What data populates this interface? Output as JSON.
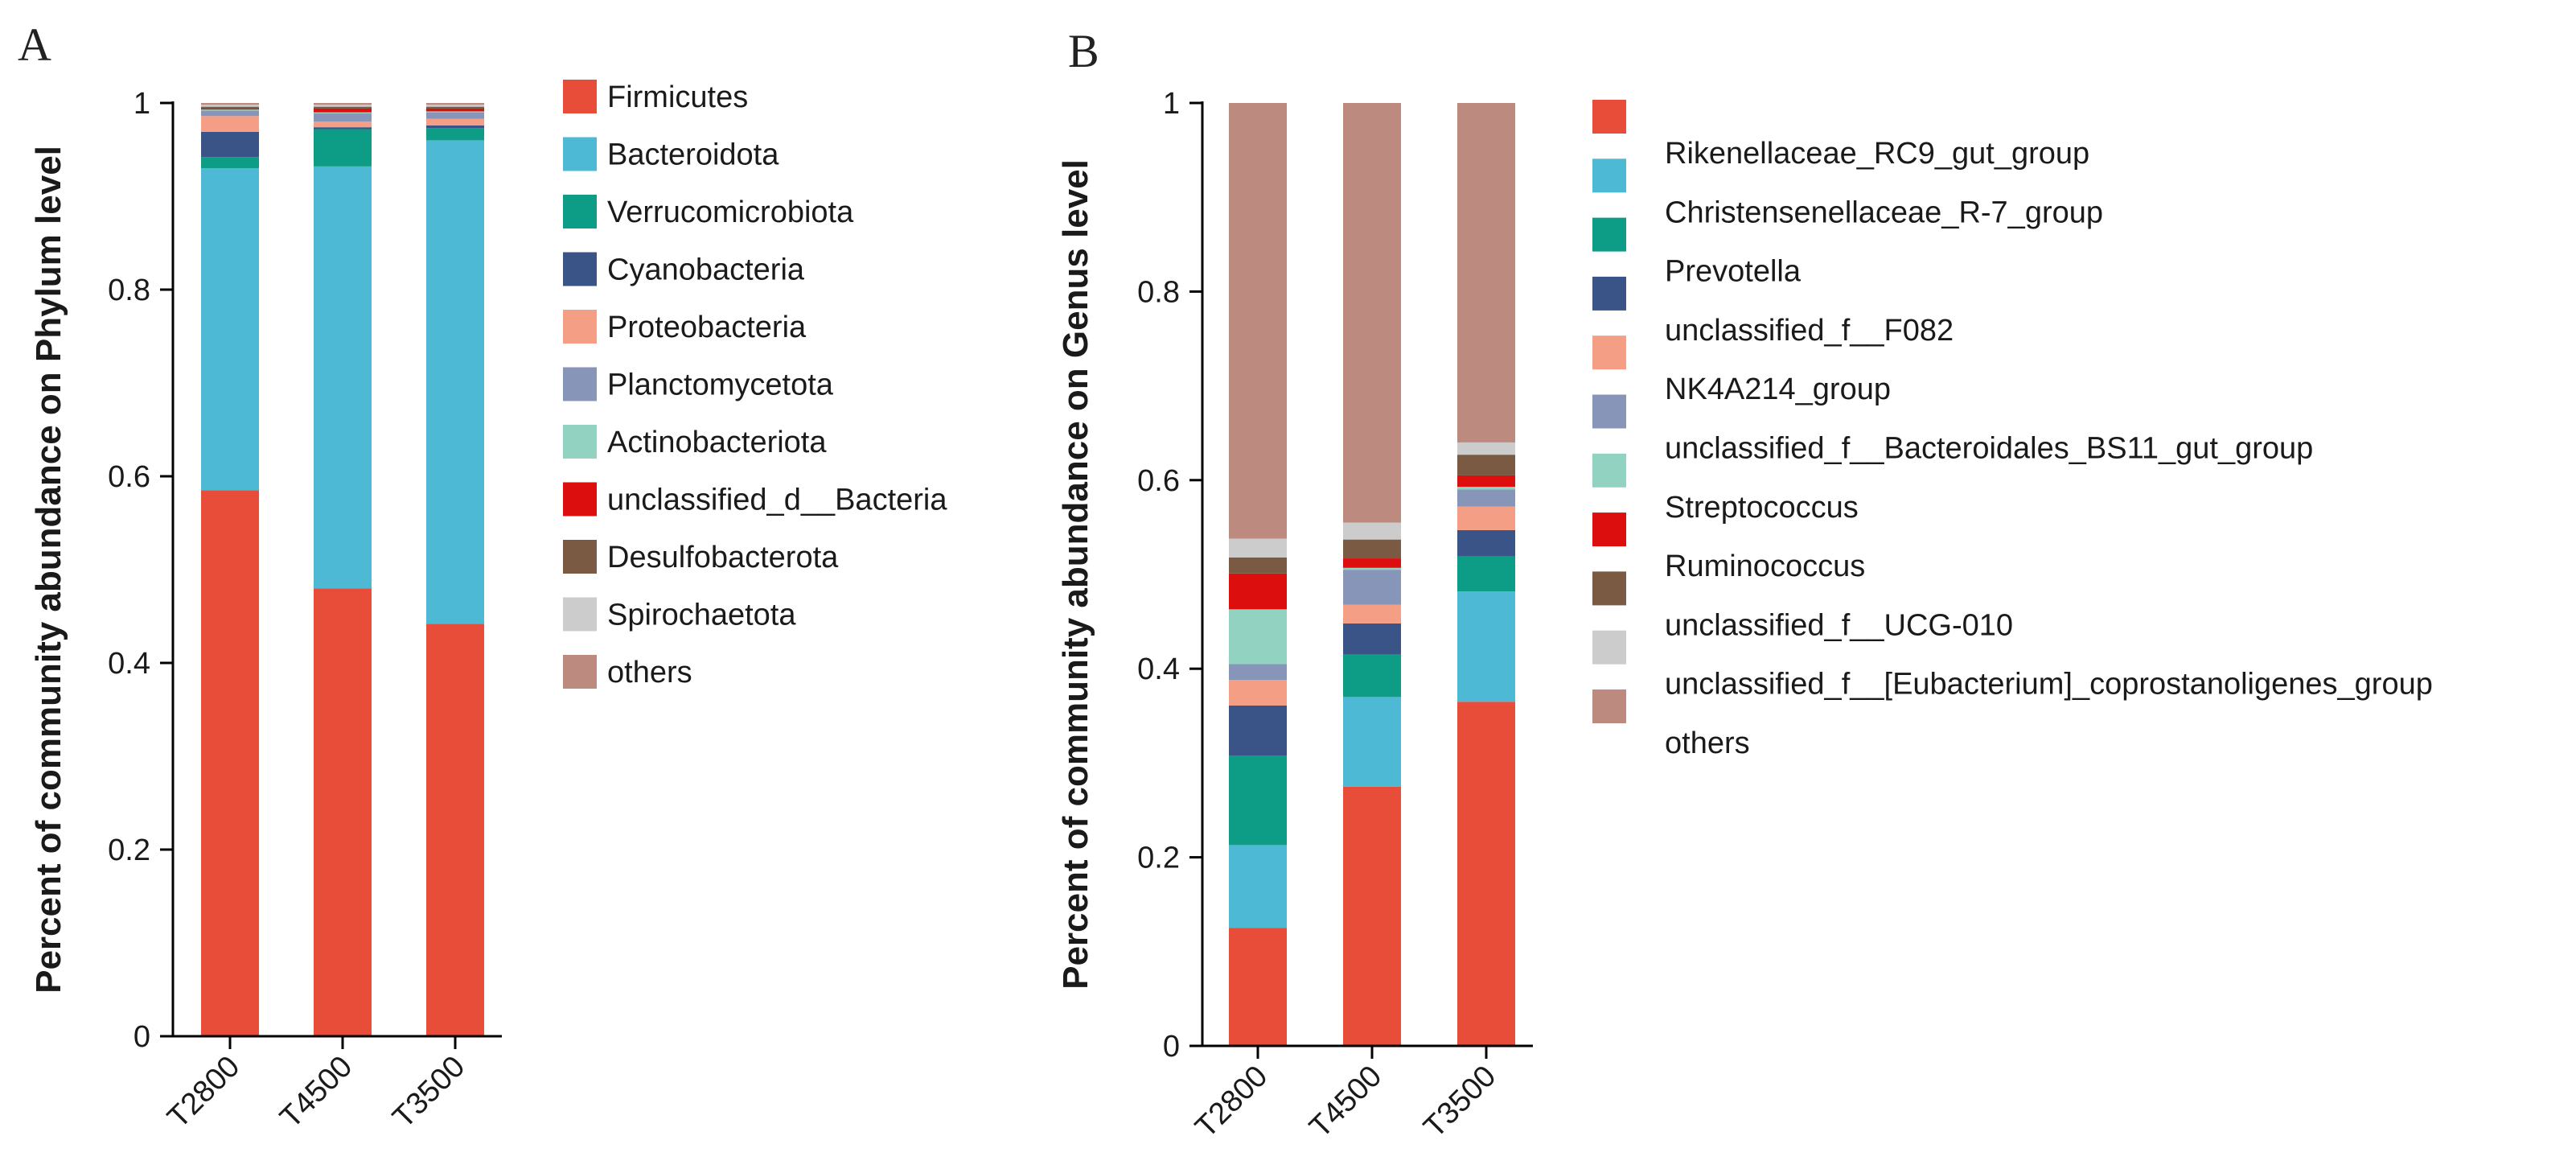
{
  "colors": {
    "red": "#e84d3a",
    "sky": "#4eb9d4",
    "teal": "#0d9c85",
    "navy": "#3b5488",
    "salmon": "#f59e86",
    "lavender": "#8795b8",
    "mint": "#91d2c1",
    "crimson": "#dd0e0e",
    "brown": "#7b5a43",
    "lightgray": "#cccccc",
    "rose": "#bc8a7f"
  },
  "chart_data": [
    {
      "type": "bar",
      "stacked": true,
      "panel_label": "A",
      "title": "",
      "xlabel": "",
      "ylabel": "Percent of community abundance on Phylum level",
      "ylim": [
        0,
        1
      ],
      "yticks": [
        "0",
        "0.2",
        "0.4",
        "0.6",
        "0.8",
        "1"
      ],
      "categories": [
        "T2800",
        "T4500",
        "T3500"
      ],
      "legend_position": "right",
      "series": [
        {
          "name": "Firmicutes",
          "color": "red",
          "values": [
            0.585,
            0.48,
            0.442
          ]
        },
        {
          "name": "Bacteroidota",
          "color": "sky",
          "values": [
            0.345,
            0.452,
            0.518
          ]
        },
        {
          "name": "Verrucomicrobiota",
          "color": "teal",
          "values": [
            0.012,
            0.04,
            0.013
          ]
        },
        {
          "name": "Cyanobacteria",
          "color": "navy",
          "values": [
            0.027,
            0.002,
            0.003
          ]
        },
        {
          "name": "Proteobacteria",
          "color": "salmon",
          "values": [
            0.017,
            0.006,
            0.007
          ]
        },
        {
          "name": "Planctomycetota",
          "color": "lavender",
          "values": [
            0.006,
            0.009,
            0.007
          ]
        },
        {
          "name": "Actinobacteriota",
          "color": "mint",
          "values": [
            0.001,
            0.001,
            0.001
          ]
        },
        {
          "name": "unclassified_d__Bacteria",
          "color": "crimson",
          "values": [
            0.001,
            0.004,
            0.003
          ]
        },
        {
          "name": "Desulfobacterota",
          "color": "brown",
          "values": [
            0.002,
            0.002,
            0.002
          ]
        },
        {
          "name": "Spirochaetota",
          "color": "lightgray",
          "values": [
            0.002,
            0.002,
            0.002
          ]
        },
        {
          "name": "others",
          "color": "rose",
          "values": [
            0.002,
            0.002,
            0.002
          ]
        }
      ]
    },
    {
      "type": "bar",
      "stacked": true,
      "panel_label": "B",
      "title": "",
      "xlabel": "",
      "ylabel": "Percent of community abundance on Genus level",
      "ylim": [
        0,
        1
      ],
      "yticks": [
        "0",
        "0.2",
        "0.4",
        "0.6",
        "0.8",
        "1"
      ],
      "categories": [
        "T2800",
        "T4500",
        "T3500"
      ],
      "legend_position": "right",
      "series": [
        {
          "name": "",
          "color": "red",
          "values": [
            0.125,
            0.275,
            0.365
          ]
        },
        {
          "name": "Rikenellaceae_RC9_gut_group",
          "color": "sky",
          "values": [
            0.088,
            0.095,
            0.117
          ]
        },
        {
          "name": "Christensenellaceae_R-7_group",
          "color": "teal",
          "values": [
            0.095,
            0.045,
            0.037
          ]
        },
        {
          "name": "Prevotella",
          "color": "navy",
          "values": [
            0.053,
            0.033,
            0.028
          ]
        },
        {
          "name": "unclassified_f__F082",
          "color": "salmon",
          "values": [
            0.027,
            0.02,
            0.025
          ]
        },
        {
          "name": "NK4A214_group",
          "color": "lavender",
          "values": [
            0.017,
            0.037,
            0.018
          ]
        },
        {
          "name": "unclassified_f__Bacteroidales_BS11_gut_group",
          "color": "mint",
          "values": [
            0.058,
            0.002,
            0.003
          ]
        },
        {
          "name": "Streptococcus",
          "color": "crimson",
          "values": [
            0.038,
            0.01,
            0.012
          ]
        },
        {
          "name": "Ruminococcus",
          "color": "brown",
          "values": [
            0.017,
            0.02,
            0.022
          ]
        },
        {
          "name": "unclassified_f__UCG-010",
          "color": "lightgray",
          "values": [
            0.02,
            0.018,
            0.013
          ]
        },
        {
          "name": "unclassified_f__[Eubacterium]_coprostanoligenes_group",
          "color": "rose",
          "values": [
            0.462,
            0.445,
            0.36
          ]
        },
        {
          "name": "others",
          "color": "rose",
          "values": [
            0,
            0,
            0
          ]
        }
      ]
    }
  ]
}
